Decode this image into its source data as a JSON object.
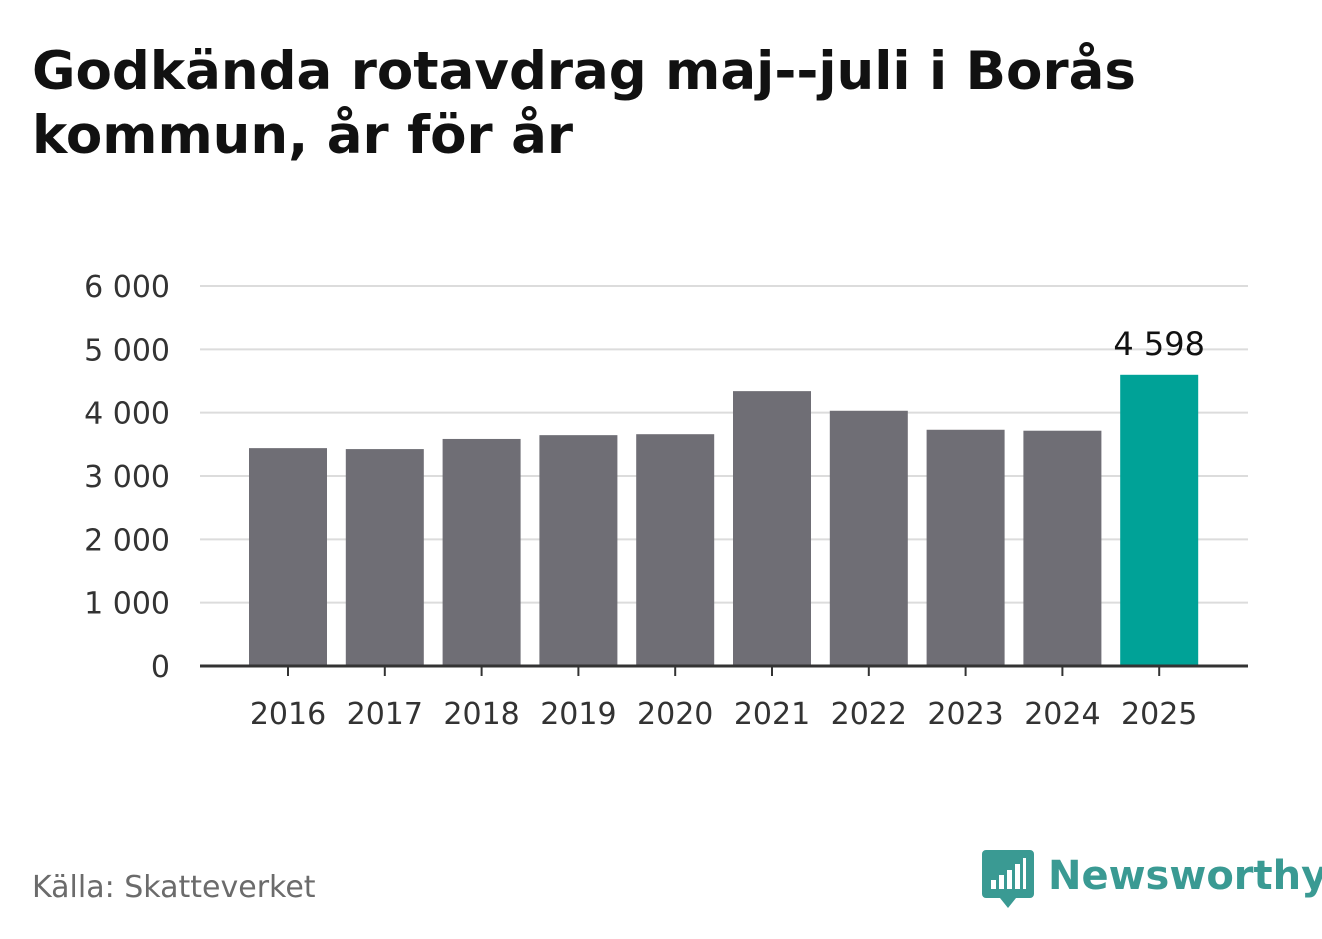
{
  "chart_data": {
    "type": "bar",
    "title": "Godkända rotavdrag maj--juli i Borås kommun, år för år",
    "categories": [
      "2016",
      "2017",
      "2018",
      "2019",
      "2020",
      "2021",
      "2022",
      "2023",
      "2024",
      "2025"
    ],
    "values": [
      3440,
      3425,
      3585,
      3645,
      3660,
      4340,
      4030,
      3730,
      3715,
      4598
    ],
    "ylim": [
      0,
      6000
    ],
    "yticks": [
      0,
      1000,
      2000,
      3000,
      4000,
      5000,
      6000
    ],
    "ytick_labels": [
      "0",
      "1 000",
      "2 000",
      "3 000",
      "4 000",
      "5 000",
      "6 000"
    ],
    "grid": true,
    "highlight_index": 9,
    "data_labels": [
      {
        "index": 9,
        "text": "4 598"
      }
    ],
    "colors": {
      "bar": "#6f6e75",
      "highlight": "#00a297",
      "grid": "#dcdcdc",
      "axis": "#333333"
    }
  },
  "source": "Källa: Skatteverket",
  "logo": {
    "text": "Newsworthy",
    "icon": "bar-chart-speech-bubble-icon",
    "color": "#3a9a93"
  }
}
